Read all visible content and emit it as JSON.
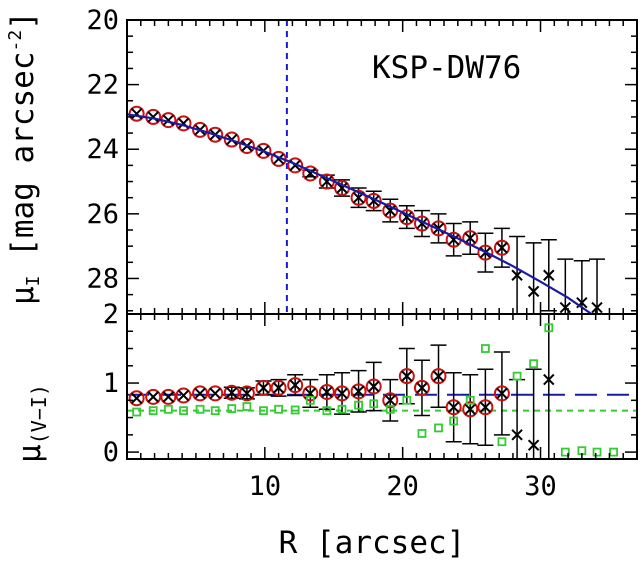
{
  "chart_data": [
    {
      "type": "scatter",
      "panel": "top",
      "annotation": "KSP-DW76",
      "ylabel_html": "μ",
      "ylabel_sub": "I",
      "ylabel_rest": " [mag arcsec",
      "ylabel_sup": "-2",
      "ylabel_end": "]",
      "xlim": [
        0,
        37
      ],
      "ylim": [
        29.1,
        20
      ],
      "y_inverted": true,
      "yticks": [
        20,
        22,
        24,
        26,
        28
      ],
      "ytick_labels": [
        "20",
        "22",
        "24",
        "26",
        "28"
      ],
      "vline_x": 11.6,
      "points": [
        {
          "x": 0.7,
          "y": 22.9,
          "err": 0.03,
          "circled": true
        },
        {
          "x": 1.9,
          "y": 23.0,
          "err": 0.03,
          "circled": true
        },
        {
          "x": 3.0,
          "y": 23.1,
          "err": 0.03,
          "circled": true
        },
        {
          "x": 4.1,
          "y": 23.2,
          "err": 0.03,
          "circled": true
        },
        {
          "x": 5.3,
          "y": 23.4,
          "err": 0.04,
          "circled": true
        },
        {
          "x": 6.4,
          "y": 23.55,
          "err": 0.04,
          "circled": true
        },
        {
          "x": 7.6,
          "y": 23.7,
          "err": 0.04,
          "circled": true
        },
        {
          "x": 8.7,
          "y": 23.9,
          "err": 0.05,
          "circled": true
        },
        {
          "x": 9.9,
          "y": 24.05,
          "err": 0.05,
          "circled": true
        },
        {
          "x": 11.0,
          "y": 24.3,
          "err": 0.06,
          "circled": true
        },
        {
          "x": 12.2,
          "y": 24.5,
          "err": 0.07,
          "circled": true
        },
        {
          "x": 13.3,
          "y": 24.75,
          "err": 0.1,
          "circled": true
        },
        {
          "x": 14.5,
          "y": 25.0,
          "err": 0.2,
          "circled": true
        },
        {
          "x": 15.6,
          "y": 25.2,
          "err": 0.25,
          "circled": true
        },
        {
          "x": 16.8,
          "y": 25.5,
          "err": 0.3,
          "circled": true
        },
        {
          "x": 17.9,
          "y": 25.6,
          "err": 0.3,
          "circled": true
        },
        {
          "x": 19.1,
          "y": 25.9,
          "err": 0.35,
          "circled": true
        },
        {
          "x": 20.3,
          "y": 26.1,
          "err": 0.35,
          "circled": true
        },
        {
          "x": 21.4,
          "y": 26.3,
          "err": 0.4,
          "circled": true
        },
        {
          "x": 22.6,
          "y": 26.45,
          "err": 0.45,
          "circled": true
        },
        {
          "x": 23.7,
          "y": 26.8,
          "err": 0.5,
          "circled": true
        },
        {
          "x": 24.9,
          "y": 26.75,
          "err": 0.5,
          "circled": true
        },
        {
          "x": 26.0,
          "y": 27.2,
          "err": 0.6,
          "circled": true
        },
        {
          "x": 27.2,
          "y": 27.05,
          "err": 0.6,
          "circled": true
        },
        {
          "x": 28.3,
          "y": 27.9,
          "err": 1.2,
          "circled": false
        },
        {
          "x": 29.5,
          "y": 28.4,
          "err": 1.5,
          "circled": false
        },
        {
          "x": 30.6,
          "y": 27.9,
          "err": 1.1,
          "circled": false
        },
        {
          "x": 31.8,
          "y": 28.9,
          "err": 1.5,
          "circled": false
        },
        {
          "x": 33.0,
          "y": 28.75,
          "err": 1.3,
          "circled": false
        },
        {
          "x": 34.1,
          "y": 28.9,
          "err": 1.5,
          "circled": false
        }
      ],
      "fit_line": {
        "x": [
          0,
          2,
          4,
          6,
          8,
          10,
          12,
          14,
          16,
          18,
          20,
          22,
          24,
          26,
          28,
          30,
          32,
          33.7
        ],
        "y": [
          22.92,
          23.05,
          23.25,
          23.5,
          23.78,
          24.08,
          24.42,
          24.8,
          25.18,
          25.56,
          25.96,
          26.36,
          26.76,
          27.18,
          27.62,
          28.1,
          28.6,
          29.1
        ]
      }
    },
    {
      "type": "scatter",
      "panel": "bottom",
      "xlabel": "R [arcsec]",
      "ylabel_html": "μ",
      "ylabel_sub": "(V−I)",
      "xlim": [
        0,
        37
      ],
      "ylim": [
        -0.1,
        2
      ],
      "xticks": [
        10,
        20,
        30
      ],
      "xtick_labels": [
        "10",
        "20",
        "30"
      ],
      "yticks": [
        0,
        1,
        2
      ],
      "ytick_labels": [
        "0",
        "1",
        "2"
      ],
      "hline_blue": 0.83,
      "hline_green": 0.6,
      "color_points": [
        {
          "x": 0.7,
          "y": 0.78,
          "err": 0.05,
          "circled": true
        },
        {
          "x": 1.9,
          "y": 0.8,
          "err": 0.05,
          "circled": true
        },
        {
          "x": 3.0,
          "y": 0.8,
          "err": 0.05,
          "circled": true
        },
        {
          "x": 4.1,
          "y": 0.82,
          "err": 0.06,
          "circled": true
        },
        {
          "x": 5.3,
          "y": 0.85,
          "err": 0.06,
          "circled": true
        },
        {
          "x": 6.4,
          "y": 0.85,
          "err": 0.06,
          "circled": true
        },
        {
          "x": 7.6,
          "y": 0.86,
          "err": 0.08,
          "circled": true
        },
        {
          "x": 8.7,
          "y": 0.85,
          "err": 0.08,
          "circled": true
        },
        {
          "x": 9.9,
          "y": 0.93,
          "err": 0.1,
          "circled": true
        },
        {
          "x": 11.0,
          "y": 0.93,
          "err": 0.12,
          "circled": true
        },
        {
          "x": 12.2,
          "y": 0.97,
          "err": 0.15,
          "circled": true
        },
        {
          "x": 13.3,
          "y": 0.85,
          "err": 0.2,
          "circled": true
        },
        {
          "x": 14.5,
          "y": 0.87,
          "err": 0.25,
          "circled": true
        },
        {
          "x": 15.6,
          "y": 0.85,
          "err": 0.3,
          "circled": true
        },
        {
          "x": 16.8,
          "y": 0.88,
          "err": 0.3,
          "circled": true
        },
        {
          "x": 17.9,
          "y": 0.95,
          "err": 0.35,
          "circled": true
        },
        {
          "x": 19.1,
          "y": 0.75,
          "err": 0.3,
          "circled": true
        },
        {
          "x": 20.3,
          "y": 1.1,
          "err": 0.4,
          "circled": true
        },
        {
          "x": 21.4,
          "y": 0.93,
          "err": 0.4,
          "circled": true
        },
        {
          "x": 22.6,
          "y": 1.1,
          "err": 0.45,
          "circled": true
        },
        {
          "x": 23.7,
          "y": 0.65,
          "err": 0.5,
          "circled": true
        },
        {
          "x": 24.9,
          "y": 0.62,
          "err": 0.5,
          "circled": true
        },
        {
          "x": 26.0,
          "y": 0.65,
          "err": 0.55,
          "circled": true
        },
        {
          "x": 27.2,
          "y": 0.85,
          "err": 0.6,
          "circled": true
        },
        {
          "x": 28.3,
          "y": 0.25,
          "err": 0.8,
          "circled": false
        },
        {
          "x": 29.5,
          "y": 0.1,
          "err": 1.1,
          "circled": false
        },
        {
          "x": 30.6,
          "y": 1.05,
          "err": 1.2,
          "circled": false
        }
      ],
      "green_points": [
        {
          "x": 0.7,
          "y": 0.58
        },
        {
          "x": 1.9,
          "y": 0.6
        },
        {
          "x": 3.0,
          "y": 0.62
        },
        {
          "x": 4.1,
          "y": 0.6
        },
        {
          "x": 5.3,
          "y": 0.62
        },
        {
          "x": 6.4,
          "y": 0.6
        },
        {
          "x": 7.6,
          "y": 0.63
        },
        {
          "x": 8.7,
          "y": 0.66
        },
        {
          "x": 9.9,
          "y": 0.6
        },
        {
          "x": 11.0,
          "y": 0.62
        },
        {
          "x": 12.2,
          "y": 0.61
        },
        {
          "x": 13.3,
          "y": 0.75
        },
        {
          "x": 14.5,
          "y": 0.6
        },
        {
          "x": 15.6,
          "y": 0.62
        },
        {
          "x": 16.8,
          "y": 0.68
        },
        {
          "x": 17.9,
          "y": 0.7
        },
        {
          "x": 19.1,
          "y": 0.62
        },
        {
          "x": 20.3,
          "y": 0.75
        },
        {
          "x": 21.4,
          "y": 0.27
        },
        {
          "x": 22.6,
          "y": 0.35
        },
        {
          "x": 23.7,
          "y": 0.45
        },
        {
          "x": 24.9,
          "y": 0.75
        },
        {
          "x": 26.0,
          "y": 1.5
        },
        {
          "x": 27.2,
          "y": 0.15
        },
        {
          "x": 28.3,
          "y": 1.1
        },
        {
          "x": 29.5,
          "y": 1.28
        },
        {
          "x": 30.6,
          "y": 1.8
        },
        {
          "x": 31.8,
          "y": 0.0
        },
        {
          "x": 33.0,
          "y": 0.02
        },
        {
          "x": 34.1,
          "y": 0.0
        },
        {
          "x": 35.3,
          "y": 0.0
        }
      ]
    }
  ],
  "colors": {
    "axis": "#000000",
    "circle": "#cc1111",
    "fit": "#1a1aa8",
    "vline": "#1a1ad8",
    "green": "#33cc33"
  }
}
